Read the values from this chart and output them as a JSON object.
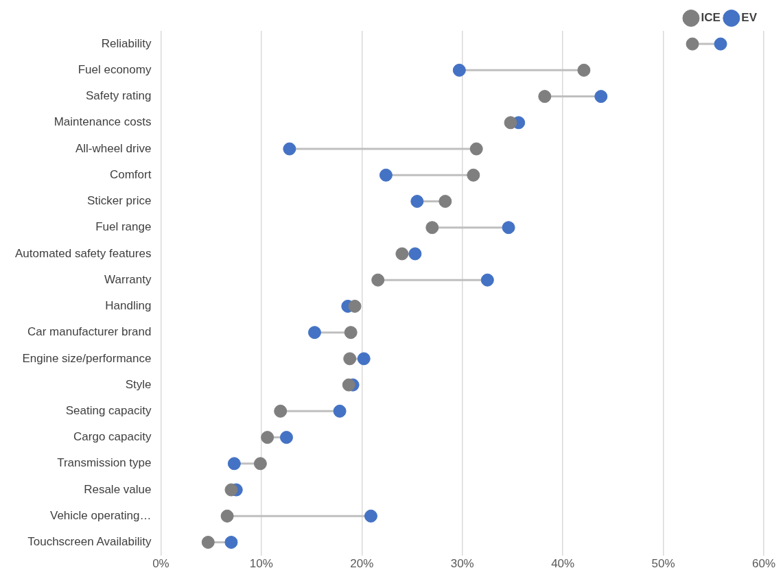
{
  "chart_data": {
    "type": "scatter",
    "orientation": "horizontal",
    "categories": [
      "Reliability",
      "Fuel economy",
      "Safety rating",
      "Maintenance costs",
      "All-wheel drive",
      "Comfort",
      "Sticker price",
      "Fuel range",
      "Automated safety features",
      "Warranty",
      "Handling",
      "Car manufacturer brand",
      "Engine size/performance",
      "Style",
      "Seating capacity",
      "Cargo capacity",
      "Transmission type",
      "Resale value",
      "Vehicle operating…",
      "Touchscreen Availability"
    ],
    "series": [
      {
        "name": "ICE",
        "color": "#7f7f7f",
        "values": [
          52.9,
          42.1,
          38.2,
          34.8,
          31.4,
          31.1,
          28.3,
          27.0,
          24.0,
          21.6,
          19.3,
          18.9,
          18.8,
          18.7,
          11.9,
          10.6,
          9.9,
          7.0,
          6.6,
          4.7
        ]
      },
      {
        "name": "EV",
        "color": "#4472c4",
        "values": [
          55.7,
          29.7,
          43.8,
          35.6,
          12.8,
          22.4,
          25.5,
          34.6,
          25.3,
          32.5,
          18.6,
          15.3,
          20.2,
          19.1,
          17.8,
          12.5,
          7.3,
          7.5,
          20.9,
          7.0
        ]
      }
    ],
    "xlim": [
      0,
      60
    ],
    "xticks": [
      {
        "value": 0,
        "label": "0%"
      },
      {
        "value": 10,
        "label": "10%"
      },
      {
        "value": 20,
        "label": "20%"
      },
      {
        "value": 30,
        "label": "30%"
      },
      {
        "value": 40,
        "label": "40%"
      },
      {
        "value": 50,
        "label": "50%"
      },
      {
        "value": 60,
        "label": "60%"
      }
    ],
    "grid": "x",
    "legend": "top right",
    "marker": "circle"
  }
}
